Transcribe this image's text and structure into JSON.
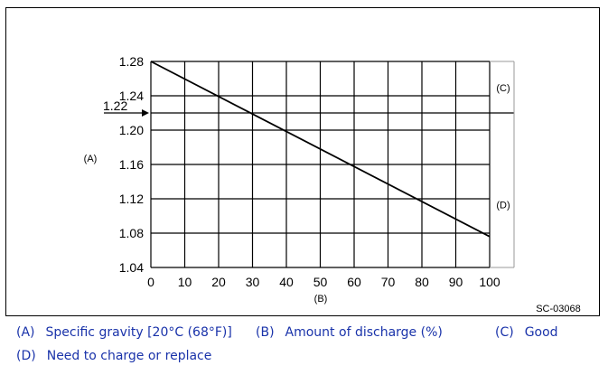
{
  "figure_id": "SC-03068",
  "chart_data": {
    "type": "line",
    "x": [
      0,
      100
    ],
    "y": [
      1.28,
      1.076
    ],
    "xlim": [
      0,
      100
    ],
    "ylim": [
      1.04,
      1.28
    ],
    "xticks": [
      0,
      10,
      20,
      30,
      40,
      50,
      60,
      70,
      80,
      90,
      100
    ],
    "yticks": [
      1.04,
      1.08,
      1.12,
      1.16,
      1.2,
      1.24,
      1.28
    ],
    "ytick_labels": [
      "1.04",
      "1.08",
      "1.12",
      "1.16",
      "1.20",
      "1.24",
      "1.28"
    ],
    "xlabel": "(B)",
    "ylabel": "(A)",
    "grid": true,
    "threshold": {
      "value": 1.22,
      "label": "1.22"
    },
    "regions": [
      {
        "label": "(C)",
        "range": [
          1.22,
          1.28
        ]
      },
      {
        "label": "(D)",
        "range": [
          1.04,
          1.22
        ]
      }
    ]
  },
  "legend": [
    {
      "key": "(A)",
      "text": "Specific gravity [20°C (68°F)]"
    },
    {
      "key": "(B)",
      "text": "Amount of discharge (%)"
    },
    {
      "key": "(C)",
      "text": "Good"
    },
    {
      "key": "(D)",
      "text": "Need to charge or replace"
    }
  ]
}
